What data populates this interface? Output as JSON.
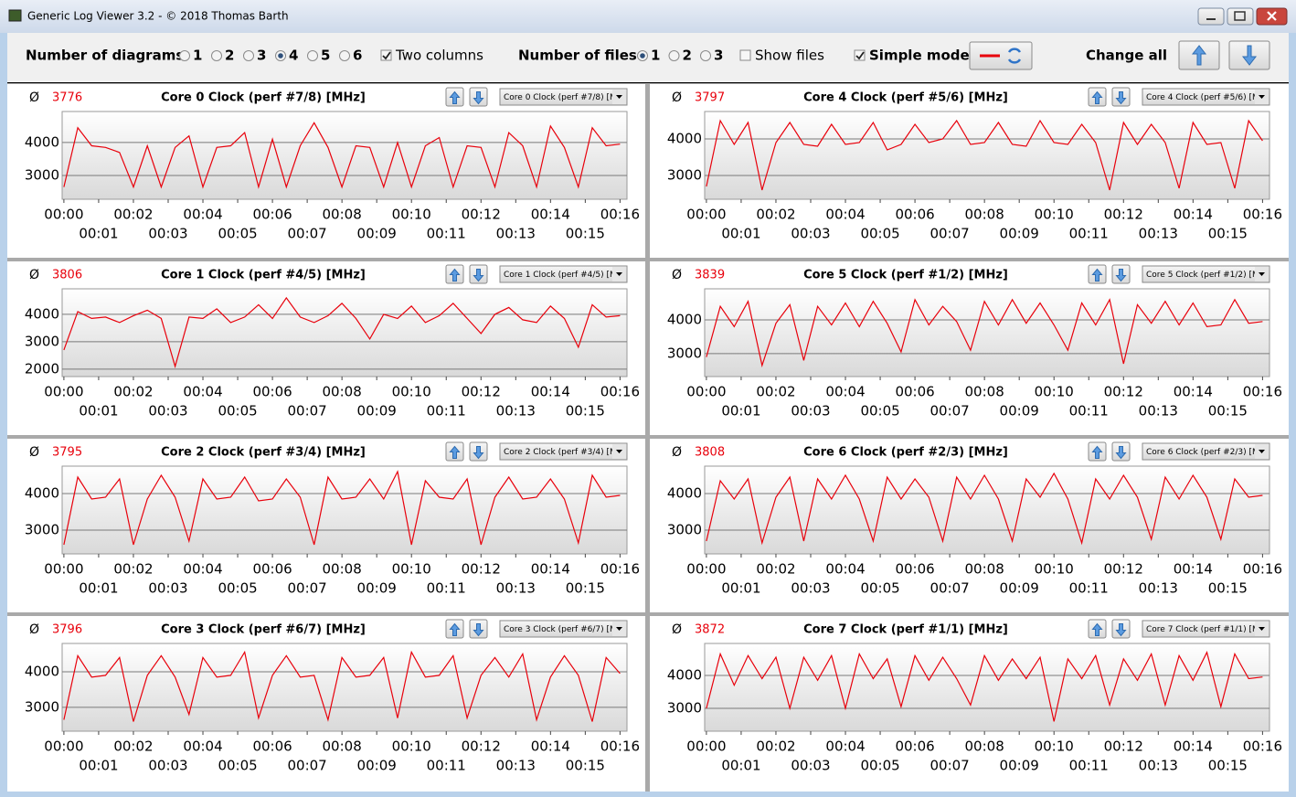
{
  "window_title": "Generic Log Viewer 3.2 - © 2018 Thomas Barth",
  "toolbar": {
    "diagrams_label": "Number of diagrams",
    "diagram_options": [
      {
        "label": "1",
        "checked": false
      },
      {
        "label": "2",
        "checked": false
      },
      {
        "label": "3",
        "checked": false
      },
      {
        "label": "4",
        "checked": true
      },
      {
        "label": "5",
        "checked": false
      },
      {
        "label": "6",
        "checked": false
      }
    ],
    "two_columns": {
      "label": "Two columns",
      "checked": true
    },
    "files_label": "Number of files",
    "file_options": [
      {
        "label": "1",
        "checked": true
      },
      {
        "label": "2",
        "checked": false
      },
      {
        "label": "3",
        "checked": false
      }
    ],
    "show_files": {
      "label": "Show files",
      "checked": false
    },
    "simple_mode": {
      "label": "Simple mode",
      "checked": true
    },
    "change_all": "Change all"
  },
  "average_symbol": "Ø",
  "line_color": "#e8000b",
  "time_axis": {
    "xlim": [
      -0.05,
      16.2
    ],
    "xticks": [
      {
        "value": 0,
        "label": "00:00"
      },
      {
        "value": 1,
        "label": "00:01"
      },
      {
        "value": 2,
        "label": "00:02"
      },
      {
        "value": 3,
        "label": "00:03"
      },
      {
        "value": 4,
        "label": "00:04"
      },
      {
        "value": 5,
        "label": "00:05"
      },
      {
        "value": 6,
        "label": "00:06"
      },
      {
        "value": 7,
        "label": "00:07"
      },
      {
        "value": 8,
        "label": "00:08"
      },
      {
        "value": 9,
        "label": "00:09"
      },
      {
        "value": 10,
        "label": "00:10"
      },
      {
        "value": 11,
        "label": "00:11"
      },
      {
        "value": 12,
        "label": "00:12"
      },
      {
        "value": 13,
        "label": "00:13"
      },
      {
        "value": 14,
        "label": "00:14"
      },
      {
        "value": 15,
        "label": "00:15"
      },
      {
        "value": 16,
        "label": "00:16"
      }
    ],
    "x": [
      0,
      0.4,
      0.8,
      1.2,
      1.6,
      2,
      2.4,
      2.8,
      3.2,
      3.6,
      4,
      4.4,
      4.8,
      5.2,
      5.6,
      6,
      6.4,
      6.8,
      7.2,
      7.6,
      8,
      8.4,
      8.8,
      9.2,
      9.6,
      10,
      10.4,
      10.8,
      11.2,
      11.6,
      12,
      12.4,
      12.8,
      13.2,
      13.6,
      14,
      14.4,
      14.8,
      15.2,
      15.6,
      16
    ]
  },
  "panels": [
    {
      "title": "Core 0 Clock (perf #7/8) [MHz]",
      "average": 3776,
      "dropdown": "Core 0 Clock (perf #7/8) [M",
      "ylim": [
        2280,
        4940
      ],
      "yticks": [
        3000,
        4000
      ],
      "values": [
        2650,
        4450,
        3900,
        3850,
        3700,
        2650,
        3900,
        2650,
        3850,
        4200,
        2650,
        3850,
        3900,
        4300,
        2650,
        4100,
        2650,
        3900,
        4600,
        3850,
        2650,
        3900,
        3850,
        2650,
        4000,
        2650,
        3900,
        4150,
        2650,
        3900,
        3850,
        2650,
        4300,
        3900,
        2650,
        4500,
        3850,
        2650,
        4450,
        3900,
        3950
      ]
    },
    {
      "title": "Core 1 Clock (perf #4/5) [MHz]",
      "average": 3806,
      "dropdown": "Core 1 Clock (perf #4/5) [M",
      "ylim": [
        1730,
        4930
      ],
      "yticks": [
        2000,
        3000,
        4000
      ],
      "values": [
        2700,
        4100,
        3850,
        3900,
        3700,
        3950,
        4150,
        3850,
        2100,
        3900,
        3850,
        4200,
        3700,
        3900,
        4350,
        3850,
        4600,
        3900,
        3700,
        3950,
        4400,
        3850,
        3100,
        4000,
        3850,
        4300,
        3700,
        3950,
        4400,
        3850,
        3300,
        4000,
        4250,
        3800,
        3700,
        4300,
        3850,
        2800,
        4350,
        3900,
        3950
      ]
    },
    {
      "title": "Core 2 Clock (perf #3/4) [MHz]",
      "average": 3795,
      "dropdown": "Core 2 Clock (perf #3/4) [M",
      "ylim": [
        2350,
        4750
      ],
      "yticks": [
        3000,
        4000
      ],
      "values": [
        2600,
        4450,
        3850,
        3900,
        4400,
        2600,
        3850,
        4500,
        3900,
        2700,
        4400,
        3850,
        3900,
        4450,
        3800,
        3850,
        4400,
        3900,
        2600,
        4450,
        3850,
        3900,
        4400,
        3850,
        4600,
        2600,
        4350,
        3900,
        3850,
        4400,
        2600,
        3900,
        4450,
        3850,
        3900,
        4400,
        3850,
        2650,
        4500,
        3900,
        3950
      ]
    },
    {
      "title": "Core 3 Clock (perf #6/7) [MHz]",
      "average": 3796,
      "dropdown": "Core 3 Clock (perf #6/7) [M",
      "ylim": [
        2330,
        4795
      ],
      "yticks": [
        3000,
        4000
      ],
      "values": [
        2650,
        4450,
        3850,
        3900,
        4400,
        2600,
        3900,
        4450,
        3850,
        2800,
        4400,
        3850,
        3900,
        4550,
        2700,
        3900,
        4450,
        3850,
        3900,
        2650,
        4400,
        3850,
        3900,
        4400,
        2700,
        4550,
        3850,
        3900,
        4450,
        2700,
        3900,
        4400,
        3850,
        4500,
        2650,
        3850,
        4450,
        3900,
        2600,
        4400,
        3950
      ]
    },
    {
      "title": "Core 4 Clock (perf #5/6) [MHz]",
      "average": 3797,
      "dropdown": "Core 4 Clock (perf #5/6) [M",
      "ylim": [
        2350,
        4750
      ],
      "yticks": [
        3000,
        4000
      ],
      "values": [
        2700,
        4500,
        3850,
        4450,
        2600,
        3900,
        4450,
        3850,
        3800,
        4400,
        3850,
        3900,
        4450,
        3700,
        3850,
        4400,
        3900,
        4000,
        4500,
        3850,
        3900,
        4450,
        3850,
        3800,
        4500,
        3900,
        3850,
        4400,
        3900,
        2600,
        4450,
        3850,
        4400,
        3900,
        2650,
        4450,
        3850,
        3900,
        2650,
        4500,
        3950
      ]
    },
    {
      "title": "Core 5 Clock (perf #1/2) [MHz]",
      "average": 3839,
      "dropdown": "Core 5 Clock (perf #1/2) [M",
      "ylim": [
        2320,
        4920
      ],
      "yticks": [
        3000,
        4000
      ],
      "values": [
        2900,
        4400,
        3800,
        4550,
        2650,
        3900,
        4450,
        2800,
        4400,
        3850,
        4500,
        3800,
        4550,
        3900,
        3050,
        4600,
        3850,
        4400,
        3950,
        3100,
        4550,
        3850,
        4600,
        3900,
        4500,
        3850,
        3100,
        4500,
        3850,
        4600,
        2700,
        4450,
        3900,
        4550,
        3850,
        4500,
        3800,
        3850,
        4600,
        3900,
        3950
      ]
    },
    {
      "title": "Core 6 Clock (perf #2/3) [MHz]",
      "average": 3808,
      "dropdown": "Core 6 Clock (perf #2/3) [M",
      "ylim": [
        2350,
        4750
      ],
      "yticks": [
        3000,
        4000
      ],
      "values": [
        2700,
        4350,
        3850,
        4400,
        2650,
        3900,
        4450,
        2700,
        4400,
        3850,
        4500,
        3850,
        2700,
        4450,
        3850,
        4400,
        3900,
        2700,
        4450,
        3850,
        4500,
        3850,
        2700,
        4400,
        3900,
        4550,
        3850,
        2650,
        4400,
        3850,
        4500,
        3900,
        2750,
        4450,
        3850,
        4500,
        3900,
        2750,
        4400,
        3900,
        3950
      ]
    },
    {
      "title": "Core 7 Clock (perf #1/1) [MHz]",
      "average": 3872,
      "dropdown": "Core 7 Clock (perf #1/1) [M",
      "ylim": [
        2305,
        4970
      ],
      "yticks": [
        3000,
        4000
      ],
      "values": [
        3000,
        4650,
        3700,
        4600,
        3900,
        4550,
        3000,
        4550,
        3850,
        4600,
        3000,
        4650,
        3900,
        4500,
        3050,
        4600,
        3850,
        4550,
        3900,
        3100,
        4600,
        3850,
        4500,
        3900,
        4550,
        2600,
        4500,
        3900,
        4600,
        3100,
        4500,
        3850,
        4650,
        3100,
        4600,
        3850,
        4700,
        3050,
        4650,
        3900,
        3950
      ]
    }
  ]
}
